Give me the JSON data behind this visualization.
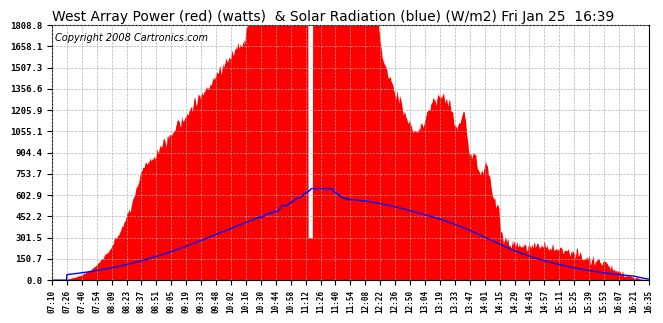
{
  "title": "West Array Power (red) (watts)  & Solar Radiation (blue) (W/m2) Fri Jan 25  16:39",
  "copyright": "Copyright 2008 Cartronics.com",
  "yticks": [
    0.0,
    150.7,
    301.5,
    452.2,
    602.9,
    753.7,
    904.4,
    1055.1,
    1205.9,
    1356.6,
    1507.3,
    1658.1,
    1808.8
  ],
  "ymax": 1808.8,
  "xtick_labels": [
    "07:10",
    "07:26",
    "07:40",
    "07:54",
    "08:09",
    "08:23",
    "08:37",
    "08:51",
    "09:05",
    "09:19",
    "09:33",
    "09:48",
    "10:02",
    "10:16",
    "10:30",
    "10:44",
    "10:58",
    "11:12",
    "11:26",
    "11:40",
    "11:54",
    "12:08",
    "12:22",
    "12:36",
    "12:50",
    "13:04",
    "13:19",
    "13:33",
    "13:47",
    "14:01",
    "14:15",
    "14:29",
    "14:43",
    "14:57",
    "15:11",
    "15:25",
    "15:39",
    "15:53",
    "16:07",
    "16:21",
    "16:35"
  ],
  "bg_color": "#ffffff",
  "plot_bg_color": "#ffffff",
  "grid_color": "#aaaaaa",
  "red_fill_color": "#ff0000",
  "blue_line_color": "#0000ff",
  "title_fontsize": 10,
  "copyright_fontsize": 7
}
